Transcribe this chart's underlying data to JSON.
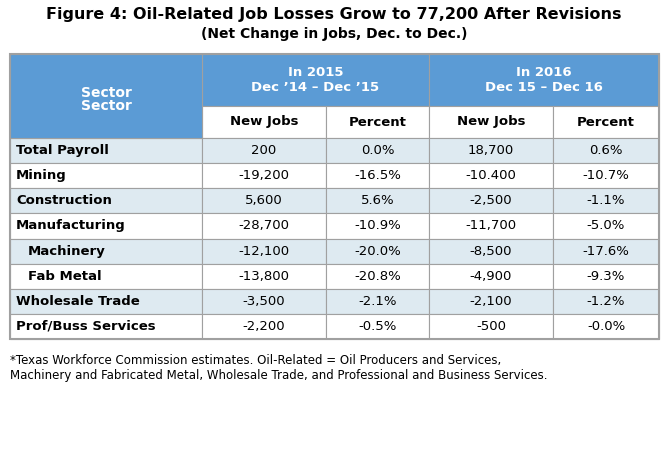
{
  "title_line1": "Figure 4: Oil-Related Job Losses Grow to 77,200 After Revisions",
  "title_line2": "(Net Change in Jobs, Dec. to Dec.)",
  "header_color": "#5B9BD5",
  "row_alt_color": "#DEEAF1",
  "row_white": "#FFFFFF",
  "header_text_color": "#FFFFFF",
  "body_text_color": "#000000",
  "border_color": "#A0A0A0",
  "rows": [
    {
      "sector": "Total Payroll",
      "indent": false,
      "vals": [
        "200",
        "0.0%",
        "18,700",
        "0.6%"
      ]
    },
    {
      "sector": "Mining",
      "indent": false,
      "vals": [
        "-19,200",
        "-16.5%",
        "-10.400",
        "-10.7%"
      ]
    },
    {
      "sector": "Construction",
      "indent": false,
      "vals": [
        "5,600",
        "5.6%",
        "-2,500",
        "-1.1%"
      ]
    },
    {
      "sector": "Manufacturing",
      "indent": false,
      "vals": [
        "-28,700",
        "-10.9%",
        "-11,700",
        "-5.0%"
      ]
    },
    {
      "sector": "Machinery",
      "indent": true,
      "vals": [
        "-12,100",
        "-20.0%",
        "-8,500",
        "-17.6%"
      ]
    },
    {
      "sector": "Fab Metal",
      "indent": true,
      "vals": [
        "-13,800",
        "-20.8%",
        "-4,900",
        "-9.3%"
      ]
    },
    {
      "sector": "Wholesale Trade",
      "indent": false,
      "vals": [
        "-3,500",
        "-2.1%",
        "-2,100",
        "-1.2%"
      ]
    },
    {
      "sector": "Prof/Buss Services",
      "indent": false,
      "vals": [
        "-2,200",
        "-0.5%",
        "-500",
        "-0.0%"
      ]
    }
  ],
  "footnote_line1": "*Texas Workforce Commission estimates. Oil-Related = Oil Producers and Services,",
  "footnote_line2": "Machinery and Fabricated Metal, Wholesale Trade, and Professional and Business Services.",
  "figsize": [
    6.69,
    4.54
  ],
  "dpi": 100
}
